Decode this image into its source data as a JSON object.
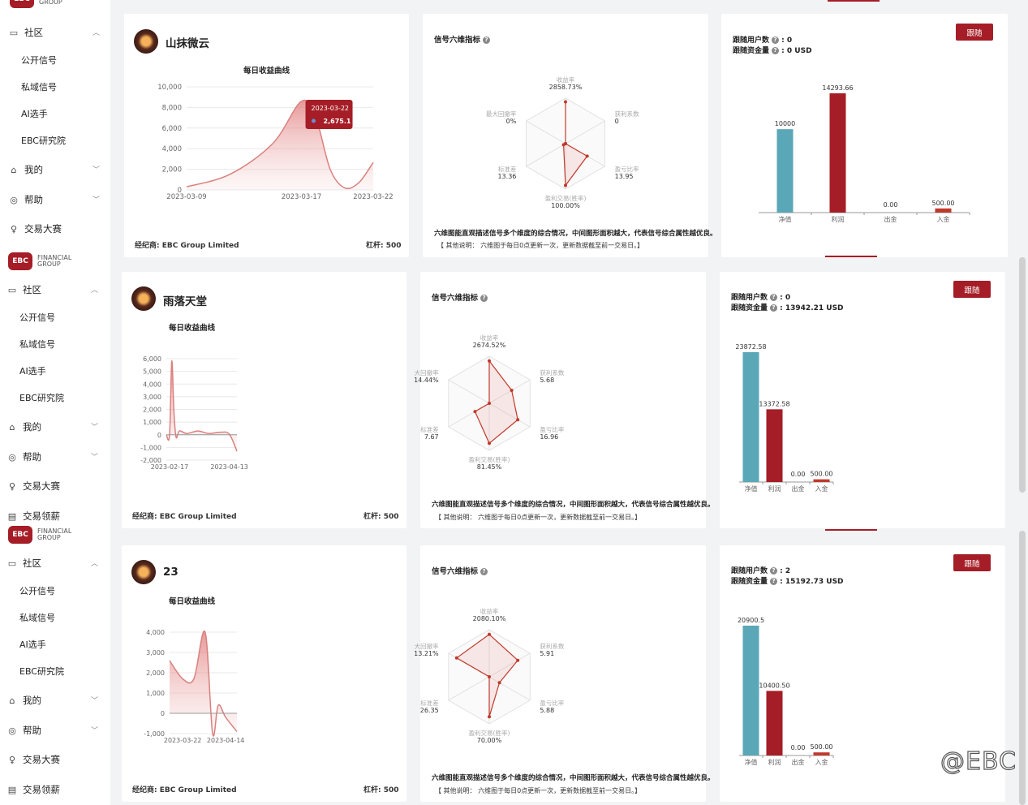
{
  "sidebar": {
    "logo_mark": "EBC",
    "logo_text": "FINANCIAL\nGROUP",
    "community": "社区",
    "sub_items": [
      "公开信号",
      "私域信号",
      "AI选手",
      "EBC研究院"
    ],
    "mine": "我的",
    "help": "帮助",
    "contest": "交易大赛",
    "salary": "交易领薪"
  },
  "common": {
    "daily_curve_title": "每日收益曲线",
    "radar_title": "信号六维指标",
    "desc": "六维图能直观描述信号多个维度的综合情况，中间图形面积越大，代表信号综合属性越优良。",
    "note": "【 其他说明：  六维图于每日0点更新一次，更新数据截至前一交易日。】",
    "broker": "经纪商: EBC Group Limited",
    "leverage": "杠杆: 500",
    "follow": "跟随",
    "followers_label": "跟随用户数",
    "funds_label": "跟随资金量",
    "bar_categories": [
      "净值",
      "利润",
      "出金",
      "入金"
    ],
    "radar_axes": [
      "收益率",
      "获利系数",
      "盈亏比率",
      "盈利交易(胜率)",
      "标准差",
      "最大回撤率"
    ]
  },
  "watermark": "@EBC",
  "signals": [
    {
      "name": "山抹微云",
      "followers": " : 0",
      "funds": " :  0 USD",
      "radar_values": [
        "2858.73%",
        "0",
        "13.95",
        "100.00%",
        "13.36",
        "0%"
      ],
      "radar_labels": [
        "收益率",
        "获利系数",
        "盈亏比率",
        "盈利交易(胜率)",
        "标准差",
        "最大回撤率"
      ],
      "tooltip_date": "2023-03-22",
      "tooltip_value": "2,675.1"
    },
    {
      "name": "雨落天堂",
      "followers": " : 0",
      "funds": " :  13942.21 USD",
      "radar_values": [
        "2674.52%",
        "5.68",
        "16.96",
        "81.45%",
        "7.67",
        "14.44%"
      ],
      "radar_labels": [
        "收益率",
        "获利系数",
        "盈亏比率",
        "盈利交易(胜率)",
        "标准差",
        "大回撤率"
      ]
    },
    {
      "name": "23",
      "followers": " : 2",
      "funds": " :  15192.73 USD",
      "radar_values": [
        "2080.10%",
        "5.91",
        "5.88",
        "70.00%",
        "26.35",
        "13.21%"
      ],
      "radar_labels": [
        "收益率",
        "获利系数",
        "盈亏比率",
        "盈利交易(胜率)",
        "标准差",
        "大回撤率"
      ]
    }
  ],
  "chart_data": [
    {
      "type": "area",
      "title": "每日收益曲线",
      "x_ticks": [
        "2023-03-09",
        "2023-03-17",
        "2023-03-22"
      ],
      "y_ticks": [
        "10,000",
        "8,000",
        "6,000",
        "4,000",
        "2,000",
        "0"
      ],
      "ylim": [
        0,
        10000
      ],
      "x": [
        "2023-03-09",
        "2023-03-12",
        "2023-03-15",
        "2023-03-17",
        "2023-03-18",
        "2023-03-19",
        "2023-03-20",
        "2023-03-21",
        "2023-03-22"
      ],
      "y": [
        300,
        1500,
        4500,
        8600,
        7000,
        2000,
        200,
        700,
        2675.1
      ]
    },
    {
      "type": "area",
      "title": "每日收益曲线",
      "x_ticks": [
        "2023-02-17",
        "2023-04-13"
      ],
      "y_ticks": [
        "6,000",
        "5,000",
        "4,000",
        "3,000",
        "2,000",
        "1,000",
        "0",
        "-1,000",
        "-2,000"
      ],
      "ylim": [
        -2000,
        6000
      ],
      "x": [
        "2023-02-14",
        "2023-02-17",
        "2023-02-19",
        "2023-02-21",
        "2023-02-23",
        "2023-02-26",
        "2023-03-05",
        "2023-03-15",
        "2023-03-25",
        "2023-04-05",
        "2023-04-13",
        "2023-04-20"
      ],
      "y": [
        0,
        0,
        5800,
        1800,
        -200,
        300,
        100,
        300,
        100,
        200,
        50,
        -1300
      ]
    },
    {
      "type": "area",
      "title": "每日收益曲线",
      "x_ticks": [
        "2023-03-22",
        "2023-04-14"
      ],
      "y_ticks": [
        "4,000",
        "3,000",
        "2,000",
        "1,000",
        "0",
        "-1,000"
      ],
      "ylim": [
        -1000,
        4000
      ],
      "x": [
        "2023-03-15",
        "2023-03-22",
        "2023-03-28",
        "2023-04-03",
        "2023-04-07",
        "2023-04-10",
        "2023-04-14",
        "2023-04-20"
      ],
      "y": [
        2600,
        1700,
        1700,
        4000,
        -1000,
        400,
        -200,
        -900
      ]
    },
    {
      "type": "bar",
      "categories": [
        "净值",
        "利润",
        "出金",
        "入金"
      ],
      "values": [
        10000,
        14293.66,
        0.0,
        500.0
      ],
      "labels": [
        "10000",
        "14293.66",
        "0.00",
        "500.00"
      ]
    },
    {
      "type": "bar",
      "categories": [
        "净值",
        "利润",
        "出金",
        "入金"
      ],
      "values": [
        23872.58,
        13372.58,
        0.0,
        500.0
      ],
      "labels": [
        "23872.58",
        "13372.58",
        "0.00",
        "500.00"
      ]
    },
    {
      "type": "bar",
      "categories": [
        "净值",
        "利润",
        "出金",
        "入金"
      ],
      "values": [
        20900.5,
        10400.5,
        0.0,
        500.0
      ],
      "labels": [
        "20900.5",
        "10400.50",
        "0.00",
        "500.00"
      ]
    }
  ]
}
